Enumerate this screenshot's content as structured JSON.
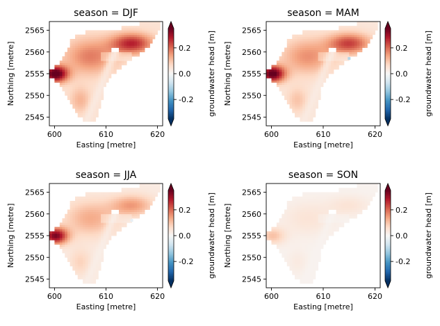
{
  "chart_data": [
    {
      "type": "heatmap",
      "title": "season = DJF",
      "xlabel": "Easting [metre]",
      "ylabel": "Northing [metre]",
      "colorbar_label": "groundwater head [m]",
      "colormap": "RdBu_r",
      "xlim": [
        599,
        621
      ],
      "ylim": [
        2543,
        2567
      ],
      "clim": [
        -0.35,
        0.35
      ],
      "x_ticks": [
        600,
        610,
        620
      ],
      "y_ticks": [
        2545,
        2550,
        2555,
        2560,
        2565
      ],
      "colorbar_ticks": [
        -0.2,
        0.0,
        0.2
      ],
      "anomaly": {
        "west_peak": 0.33,
        "northeast_arm": 0.22,
        "main_body": 0.13,
        "south": 0.07,
        "channel": 0.02,
        "edges": 0.05,
        "spot_value": null
      }
    },
    {
      "type": "heatmap",
      "title": "season = MAM",
      "xlabel": "Easting [metre]",
      "ylabel": "Northing [metre]",
      "colorbar_label": "groundwater head [m]",
      "colormap": "RdBu_r",
      "xlim": [
        599,
        621
      ],
      "ylim": [
        2543,
        2567
      ],
      "clim": [
        -0.35,
        0.35
      ],
      "x_ticks": [
        600,
        610,
        620
      ],
      "y_ticks": [
        2545,
        2550,
        2555,
        2560,
        2565
      ],
      "colorbar_ticks": [
        -0.2,
        0.0,
        0.2
      ],
      "anomaly": {
        "west_peak": 0.33,
        "northeast_arm": 0.2,
        "main_body": 0.12,
        "south": 0.06,
        "channel": 0.02,
        "edges": 0.04,
        "spot_value": -0.1
      }
    },
    {
      "type": "heatmap",
      "title": "season = JJA",
      "xlabel": "Easting [metre]",
      "ylabel": "Northing [metre]",
      "colorbar_label": "groundwater head [m]",
      "colormap": "RdBu_r",
      "xlim": [
        599,
        621
      ],
      "ylim": [
        2543,
        2567
      ],
      "clim": [
        -0.35,
        0.35
      ],
      "x_ticks": [
        600,
        610,
        620
      ],
      "y_ticks": [
        2545,
        2550,
        2555,
        2560,
        2565
      ],
      "colorbar_ticks": [
        -0.2,
        0.0,
        0.2
      ],
      "anomaly": {
        "west_peak": 0.3,
        "northeast_arm": 0.12,
        "main_body": 0.1,
        "south": 0.05,
        "channel": 0.015,
        "edges": 0.03,
        "spot_value": -0.03
      }
    },
    {
      "type": "heatmap",
      "title": "season = SON",
      "xlabel": "Easting [metre]",
      "ylabel": "Northing [metre]",
      "colorbar_label": "groundwater head [m]",
      "colormap": "RdBu_r",
      "xlim": [
        599,
        621
      ],
      "ylim": [
        2543,
        2567
      ],
      "clim": [
        -0.35,
        0.35
      ],
      "x_ticks": [
        600,
        610,
        620
      ],
      "y_ticks": [
        2545,
        2550,
        2555,
        2560,
        2565
      ],
      "colorbar_ticks": [
        -0.2,
        0.0,
        0.2
      ],
      "anomaly": {
        "west_peak": 0.09,
        "northeast_arm": 0.035,
        "main_body": 0.035,
        "south": 0.02,
        "channel": 0.008,
        "edges": 0.012,
        "spot_value": null
      }
    }
  ]
}
